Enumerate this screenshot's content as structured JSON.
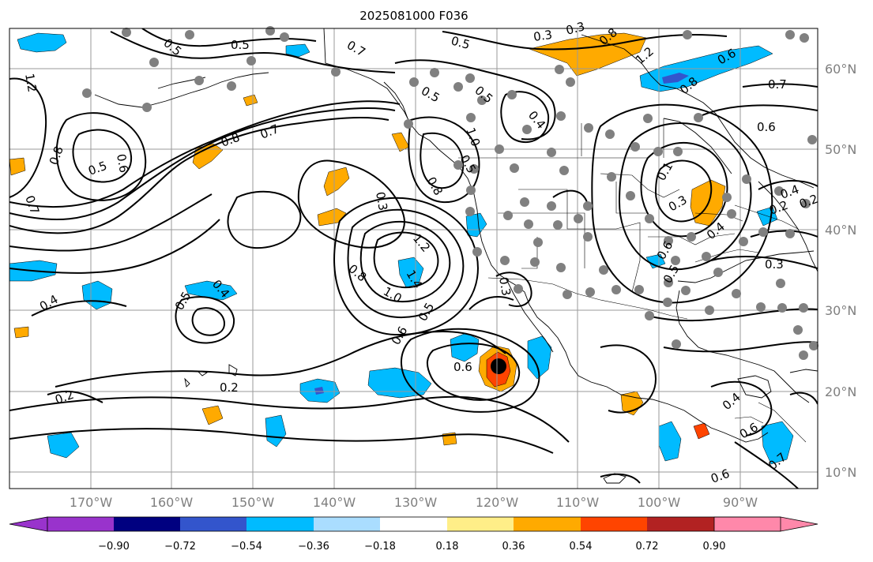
{
  "title": "2025081000 F036",
  "lon_labels": [
    "170°W",
    "160°W",
    "150°W",
    "140°W",
    "130°W",
    "120°W",
    "110°W",
    "100°W",
    "90°W"
  ],
  "lat_labels": [
    "60°N",
    "50°N",
    "40°N",
    "30°N",
    "20°N",
    "10°N"
  ],
  "colorbar": {
    "tick_labels": [
      "−0.90",
      "−0.72",
      "−0.54",
      "−0.36",
      "−0.18",
      "0.18",
      "0.36",
      "0.54",
      "0.72",
      "0.90"
    ],
    "colors": [
      "#9933cc",
      "#000080",
      "#3355cc",
      "#00bbff",
      "#aaddff",
      "#ffffff",
      "#ffee88",
      "#ffaa00",
      "#ff4400",
      "#b22222",
      "#ff88aa"
    ],
    "extend": "both"
  },
  "contour_labels": [
    "0.5",
    "0.5",
    "0.7",
    "0.5",
    "0.3",
    "0.8",
    "1.2",
    "1.2",
    "0.8",
    "0.5",
    "0.6",
    "0.8",
    "0.7",
    "0.5",
    "0.8",
    "0.7",
    "0.6",
    "0.7",
    "0.5",
    "0.3",
    "0.5",
    "0.4",
    "1.0",
    "0.6",
    "0.8",
    "0.3",
    "1.2",
    "1.4",
    "0.8",
    "1.0",
    "0.6",
    "0.5",
    "0.3",
    "0.4",
    "0.5",
    "0.4",
    "0.2",
    "0.2",
    "0.6",
    "0.1",
    "0.3",
    "0.4",
    "0.6",
    "0.5",
    "0.3",
    "0.2",
    "0.4",
    "0.6",
    "0.7",
    "0.6",
    "0.4",
    "0.2"
  ],
  "colors": {
    "contour": "#000000",
    "grid": "#9a9a9a",
    "station": "#808080",
    "tick_label": "#7f7f7f"
  }
}
